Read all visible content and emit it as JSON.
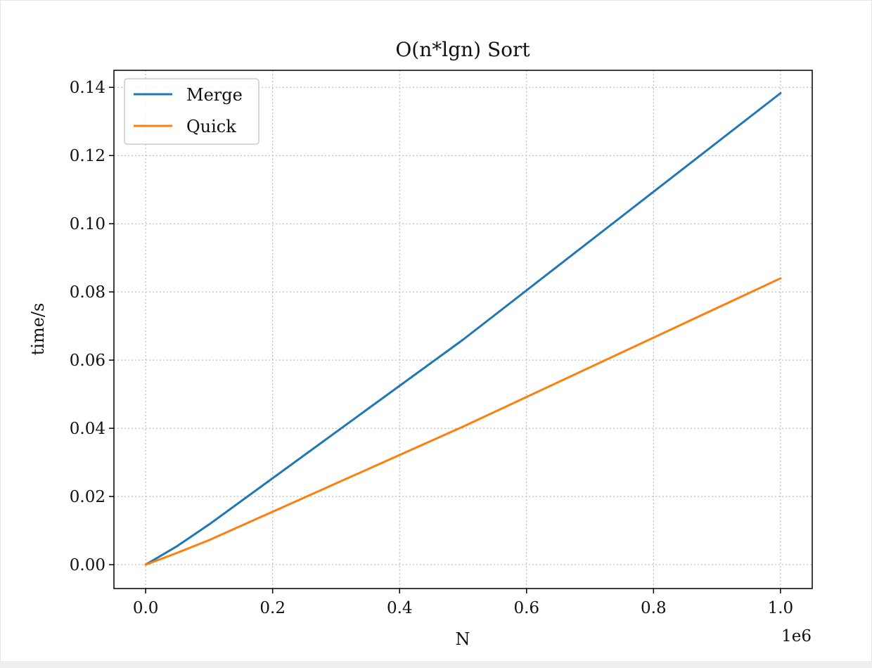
{
  "chart_data": {
    "type": "line",
    "title": "O(n*lgn) Sort",
    "xlabel": "N",
    "ylabel": "time/s",
    "x_offset_label": "1e6",
    "xlim": [
      -0.05,
      1.05
    ],
    "ylim": [
      -0.007,
      0.145
    ],
    "xticks": [
      0.0,
      0.2,
      0.4,
      0.6,
      0.8,
      1.0
    ],
    "xtick_labels": [
      "0.0",
      "0.2",
      "0.4",
      "0.6",
      "0.8",
      "1.0"
    ],
    "yticks": [
      0.0,
      0.02,
      0.04,
      0.06,
      0.08,
      0.1,
      0.12,
      0.14
    ],
    "ytick_labels": [
      "0.00",
      "0.02",
      "0.04",
      "0.06",
      "0.08",
      "0.10",
      "0.12",
      "0.14"
    ],
    "grid": true,
    "legend_position": "top-left",
    "x": [
      0.0,
      0.05,
      0.1,
      0.5,
      1.0
    ],
    "series": [
      {
        "name": "Merge",
        "color": "#1f77b4",
        "values": [
          0.0,
          0.0055,
          0.0118,
          0.066,
          0.1383
        ]
      },
      {
        "name": "Quick",
        "color": "#ff7f0e",
        "values": [
          0.0,
          0.0035,
          0.0072,
          0.0405,
          0.084
        ]
      }
    ]
  }
}
